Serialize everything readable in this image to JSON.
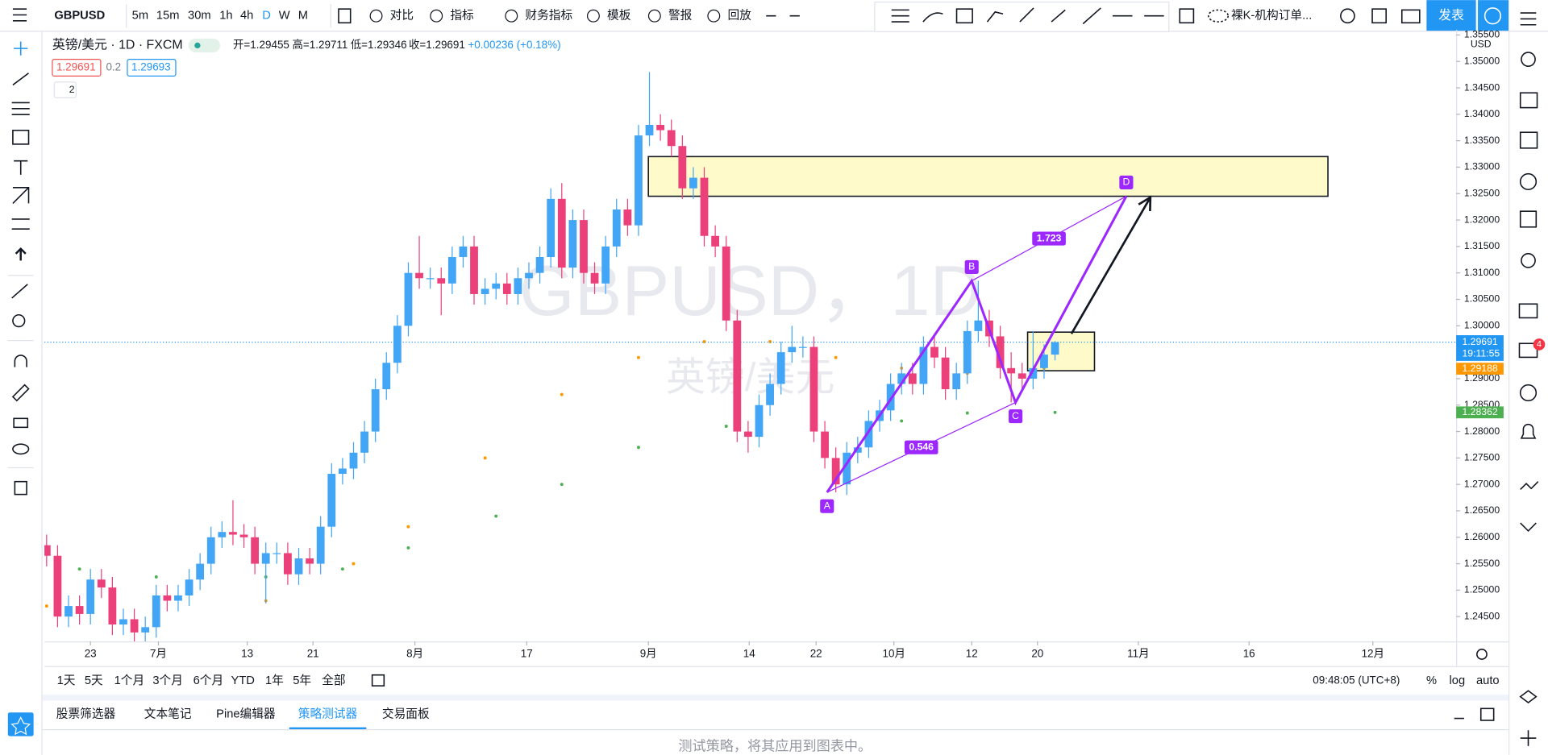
{
  "toolbar": {
    "symbol": "GBPUSD",
    "intervals": [
      "5m",
      "15m",
      "30m",
      "1h",
      "4h",
      "D",
      "W",
      "M"
    ],
    "buttons": [
      "对比",
      "指标",
      "财务指标",
      "模板",
      "警报",
      "回放"
    ],
    "layout_name": "裸K-机构订单...",
    "publish": "发表"
  },
  "legend": {
    "title": "英镑/美元 · 1D · FXCM",
    "open": "开=1.29455",
    "high": "高=1.29711",
    "low": "低=1.29346",
    "close": "收=1.29691",
    "change": "+0.00236 (+0.18%)",
    "sell": "1.29691",
    "spread": "0.2",
    "buy": "1.29693",
    "collapse": "2"
  },
  "watermark": {
    "symbol": "GBPUSD，1D",
    "name": "英镑/美元"
  },
  "chart_data": {
    "type": "candlestick",
    "currency": "USD",
    "up_color": "#42a5f5",
    "down_color": "#ec407a",
    "open": [
      1.2585,
      1.2565,
      1.245,
      1.247,
      1.2455,
      1.252,
      1.2505,
      1.2435,
      1.2445,
      1.242,
      1.243,
      1.249,
      1.248,
      1.249,
      1.252,
      1.255,
      1.26,
      1.261,
      1.2605,
      1.26,
      1.255,
      1.257,
      1.257,
      1.253,
      1.256,
      1.255,
      1.262,
      1.272,
      1.273,
      1.276,
      1.28,
      1.288,
      1.293,
      1.3,
      1.31,
      1.309,
      1.309,
      1.308,
      1.313,
      1.315,
      1.306,
      1.307,
      1.308,
      1.306,
      1.309,
      1.31,
      1.313,
      1.324,
      1.311,
      1.32,
      1.31,
      1.308,
      1.315,
      1.322,
      1.319,
      1.336,
      1.338,
      1.337,
      1.334,
      1.326,
      1.328,
      1.317,
      1.315,
      1.301,
      1.28,
      1.279,
      1.285,
      1.289,
      1.295,
      1.296,
      1.296,
      1.28,
      1.275,
      1.27,
      1.276,
      1.277,
      1.282,
      1.284,
      1.289,
      1.291,
      1.289,
      1.296,
      1.294,
      1.288,
      1.291,
      1.299,
      1.301,
      1.298,
      1.292,
      1.291,
      1.29,
      1.292,
      1.29455
    ],
    "high": [
      1.2605,
      1.2585,
      1.249,
      1.249,
      1.254,
      1.254,
      1.2525,
      1.2465,
      1.2465,
      1.245,
      1.251,
      1.251,
      1.251,
      1.254,
      1.257,
      1.262,
      1.263,
      1.267,
      1.2625,
      1.262,
      1.259,
      1.259,
      1.259,
      1.258,
      1.258,
      1.264,
      1.274,
      1.275,
      1.278,
      1.282,
      1.29,
      1.295,
      1.302,
      1.312,
      1.317,
      1.311,
      1.311,
      1.315,
      1.317,
      1.317,
      1.309,
      1.31,
      1.31,
      1.311,
      1.312,
      1.315,
      1.326,
      1.327,
      1.322,
      1.322,
      1.312,
      1.317,
      1.324,
      1.324,
      1.338,
      1.348,
      1.34,
      1.339,
      1.336,
      1.33,
      1.33,
      1.319,
      1.317,
      1.303,
      1.282,
      1.287,
      1.291,
      1.297,
      1.3,
      1.298,
      1.298,
      1.282,
      1.277,
      1.278,
      1.279,
      1.284,
      1.286,
      1.291,
      1.293,
      1.293,
      1.298,
      1.298,
      1.296,
      1.293,
      1.301,
      1.3085,
      1.303,
      1.3,
      1.295,
      1.293,
      1.299,
      1.2965,
      1.29711
    ],
    "low": [
      1.2545,
      1.243,
      1.243,
      1.2435,
      1.2435,
      1.2485,
      1.2415,
      1.2415,
      1.24,
      1.24,
      1.241,
      1.246,
      1.246,
      1.247,
      1.25,
      1.253,
      1.258,
      1.2585,
      1.258,
      1.253,
      1.2475,
      1.255,
      1.251,
      1.251,
      1.253,
      1.253,
      1.26,
      1.27,
      1.271,
      1.274,
      1.278,
      1.286,
      1.291,
      1.298,
      1.307,
      1.307,
      1.302,
      1.306,
      1.311,
      1.304,
      1.304,
      1.305,
      1.304,
      1.304,
      1.307,
      1.308,
      1.311,
      1.309,
      1.309,
      1.308,
      1.306,
      1.306,
      1.313,
      1.317,
      1.317,
      1.334,
      1.335,
      1.332,
      1.324,
      1.324,
      1.315,
      1.313,
      1.299,
      1.278,
      1.276,
      1.277,
      1.283,
      1.287,
      1.293,
      1.294,
      1.278,
      1.273,
      1.2685,
      1.268,
      1.274,
      1.275,
      1.28,
      1.282,
      1.287,
      1.287,
      1.287,
      1.292,
      1.286,
      1.286,
      1.289,
      1.297,
      1.296,
      1.29,
      1.2855,
      1.288,
      1.288,
      1.29,
      1.29346
    ],
    "close": [
      1.2565,
      1.245,
      1.247,
      1.2455,
      1.252,
      1.2505,
      1.2435,
      1.2445,
      1.242,
      1.243,
      1.249,
      1.248,
      1.249,
      1.252,
      1.255,
      1.26,
      1.261,
      1.2605,
      1.26,
      1.255,
      1.257,
      1.257,
      1.253,
      1.256,
      1.255,
      1.262,
      1.272,
      1.273,
      1.276,
      1.28,
      1.288,
      1.293,
      1.3,
      1.31,
      1.309,
      1.309,
      1.308,
      1.313,
      1.315,
      1.306,
      1.307,
      1.308,
      1.306,
      1.309,
      1.31,
      1.313,
      1.324,
      1.311,
      1.32,
      1.31,
      1.308,
      1.315,
      1.322,
      1.319,
      1.336,
      1.338,
      1.337,
      1.334,
      1.326,
      1.328,
      1.317,
      1.315,
      1.301,
      1.28,
      1.279,
      1.285,
      1.289,
      1.295,
      1.296,
      1.296,
      1.28,
      1.275,
      1.27,
      1.276,
      1.277,
      1.282,
      1.284,
      1.289,
      1.291,
      1.289,
      1.296,
      1.294,
      1.288,
      1.291,
      1.299,
      1.301,
      1.298,
      1.292,
      1.291,
      1.29,
      1.292,
      1.29455,
      1.29691
    ],
    "xlim": [
      -0.2,
      128.6
    ],
    "xticks": [
      {
        "value": 4,
        "label": "23"
      },
      {
        "value": 10.2,
        "label": "7月"
      },
      {
        "value": 18.3,
        "label": "13"
      },
      {
        "value": 24.3,
        "label": "21"
      },
      {
        "value": 33.6,
        "label": "8月"
      },
      {
        "value": 43.8,
        "label": "17"
      },
      {
        "value": 54.9,
        "label": "9月"
      },
      {
        "value": 64.1,
        "label": "14"
      },
      {
        "value": 70.2,
        "label": "22"
      },
      {
        "value": 77.3,
        "label": "10月"
      },
      {
        "value": 84.4,
        "label": "12"
      },
      {
        "value": 90.4,
        "label": "20"
      },
      {
        "value": 99.6,
        "label": "11月"
      },
      {
        "value": 109.7,
        "label": "16"
      },
      {
        "value": 121,
        "label": "12月"
      }
    ],
    "ylim": [
      1.2403,
      1.356
    ],
    "yticks": [
      {
        "value": 1.245,
        "label": "1.24500"
      },
      {
        "value": 1.25,
        "label": "1.25000"
      },
      {
        "value": 1.255,
        "label": "1.25500"
      },
      {
        "value": 1.26,
        "label": "1.26000"
      },
      {
        "value": 1.265,
        "label": "1.26500"
      },
      {
        "value": 1.27,
        "label": "1.27000"
      },
      {
        "value": 1.275,
        "label": "1.27500"
      },
      {
        "value": 1.28,
        "label": "1.28000"
      },
      {
        "value": 1.285,
        "label": "1.28500"
      },
      {
        "value": 1.29,
        "label": "1.29000"
      },
      {
        "value": 1.295,
        "label": "1.29500"
      },
      {
        "value": 1.3,
        "label": "1.30000"
      },
      {
        "value": 1.305,
        "label": "1.30500"
      },
      {
        "value": 1.31,
        "label": "1.31000"
      },
      {
        "value": 1.315,
        "label": "1.31500"
      },
      {
        "value": 1.32,
        "label": "1.32000"
      },
      {
        "value": 1.325,
        "label": "1.32500"
      },
      {
        "value": 1.33,
        "label": "1.33000"
      },
      {
        "value": 1.335,
        "label": "1.33500"
      },
      {
        "value": 1.34,
        "label": "1.34000"
      },
      {
        "value": 1.345,
        "label": "1.34500"
      },
      {
        "value": 1.35,
        "label": "1.35000"
      },
      {
        "value": 1.355,
        "label": "1.35500"
      }
    ],
    "overlays": [
      {
        "color": "#ff9800",
        "x": [
          0,
          10,
          20,
          28,
          33,
          40,
          47,
          54,
          60,
          66,
          72,
          78,
          84,
          91
        ],
        "values": [
          1.247,
          1.245,
          1.248,
          1.255,
          1.262,
          1.275,
          1.287,
          1.294,
          1.297,
          1.297,
          1.294,
          1.292,
          1.291,
          1.292
        ]
      },
      {
        "color": "#4caf50",
        "x": [
          3,
          10,
          20,
          27,
          33,
          41,
          47,
          54,
          62,
          70,
          78,
          84,
          92
        ],
        "values": [
          1.254,
          1.2525,
          1.2525,
          1.254,
          1.258,
          1.264,
          1.27,
          1.277,
          1.281,
          1.282,
          1.282,
          1.2835,
          1.28362
        ]
      }
    ],
    "last_price": {
      "value": 1.29691,
      "label": "1.29691",
      "color": "#2196f3",
      "countdown": "19:11:55"
    },
    "price_labels": [
      {
        "value": 1.29188,
        "label": "1.29188",
        "color": "#ff9800"
      },
      {
        "value": 1.28362,
        "label": "1.28362",
        "color": "#4caf50"
      }
    ],
    "zones": [
      {
        "x": [
          54.9,
          116.9
        ],
        "y": [
          1.3245,
          1.332
        ]
      },
      {
        "x": [
          89.5,
          95.6
        ],
        "y": [
          1.2915,
          1.2988
        ]
      }
    ],
    "pattern": {
      "color": "#9c27ff",
      "labels": [
        "A",
        "B",
        "C",
        "D"
      ],
      "x": [
        71.2,
        84.4,
        88.4,
        98.5
      ],
      "y": [
        1.2685,
        1.3085,
        1.2855,
        1.3245
      ],
      "ratios": [
        0.546,
        1.723
      ]
    },
    "arrow": {
      "x": [
        93.5,
        100.7
      ],
      "y": [
        1.2985,
        1.3243
      ]
    }
  },
  "bottom_bar": {
    "ranges": [
      "1天",
      "5天",
      "1个月",
      "3个月",
      "6个月",
      "YTD",
      "1年",
      "5年",
      "全部"
    ],
    "time": "09:48:05 (UTC+8)",
    "percent": "%",
    "log": "log",
    "auto": "auto"
  },
  "panel": {
    "tabs": [
      "股票筛选器",
      "文本笔记",
      "Pine编辑器",
      "策略测试器",
      "交易面板"
    ],
    "message": "测试策略，将其应用到图表中。"
  },
  "sidebar": {
    "badge": "4"
  }
}
